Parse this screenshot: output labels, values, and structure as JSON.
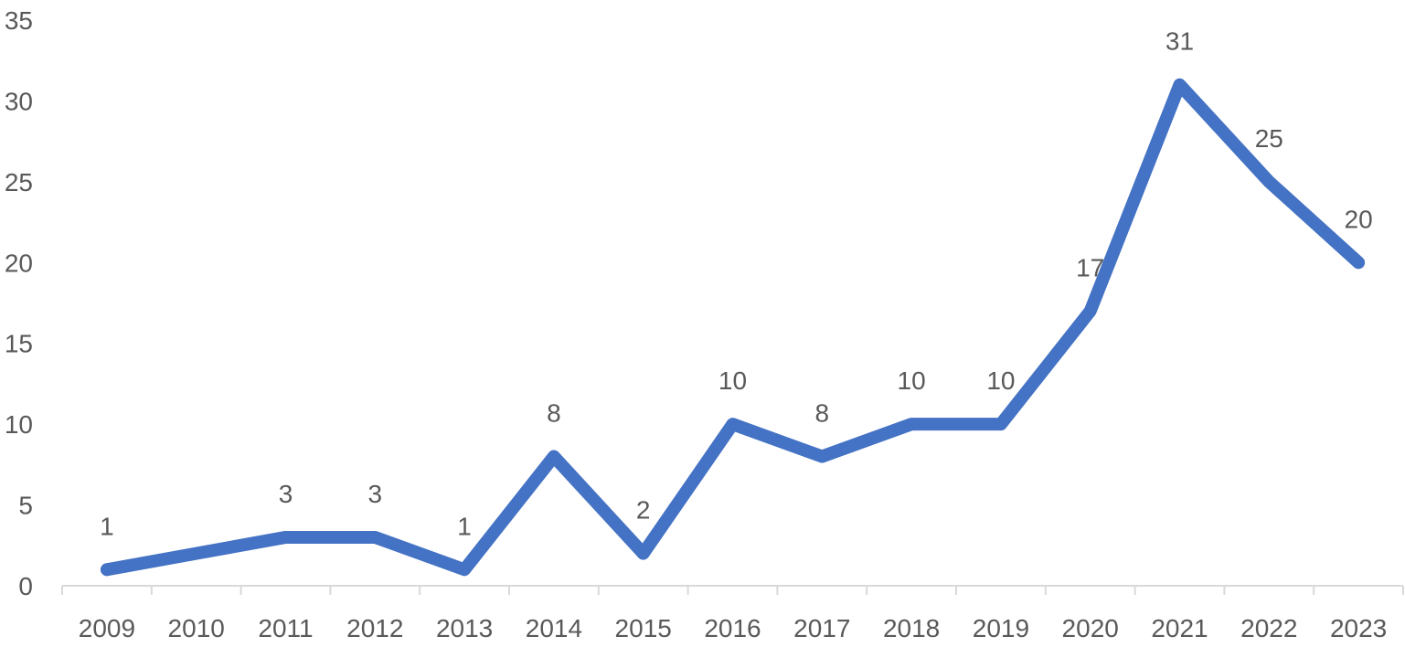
{
  "chart_data": {
    "type": "line",
    "title": "",
    "xlabel": "",
    "ylabel": "",
    "categories": [
      "2009",
      "2010",
      "2011",
      "2012",
      "2013",
      "2014",
      "2015",
      "2016",
      "2017",
      "2018",
      "2019",
      "2020",
      "2021",
      "2022",
      "2023"
    ],
    "series": [
      {
        "values": [
          1,
          2,
          3,
          3,
          1,
          8,
          2,
          10,
          8,
          10,
          10,
          17,
          31,
          25,
          20
        ],
        "color": "#4472C4"
      }
    ],
    "data_labels": [
      "1",
      "",
      "3",
      "3",
      "1",
      "8",
      "2",
      "10",
      "8",
      "10",
      "10",
      "17",
      "31",
      "25",
      "20"
    ],
    "ylim": [
      0,
      35
    ],
    "yticks": [
      "0",
      "5",
      "10",
      "15",
      "20",
      "25",
      "30",
      "35"
    ],
    "grid": false,
    "legend": "none",
    "colors": {
      "line": "#4472C4",
      "text": "#595959",
      "axis": "#d9d9d9"
    }
  }
}
